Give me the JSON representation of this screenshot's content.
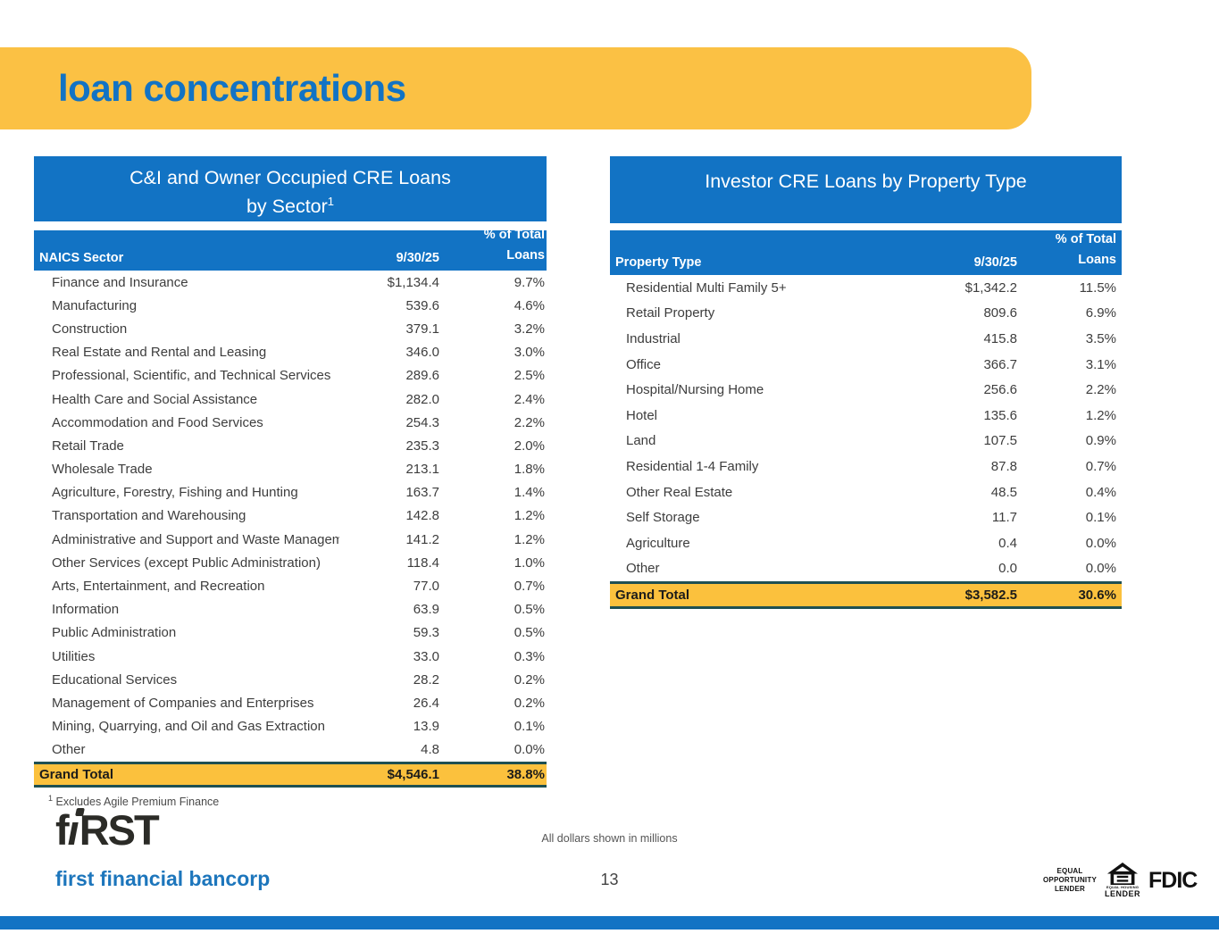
{
  "slide": {
    "title": "loan concentrations",
    "page_number": "13",
    "dollars_note": "All dollars shown in millions",
    "footnote_marker": "1",
    "footnote_text": "Excludes Agile Premium Finance"
  },
  "colors": {
    "brand_blue": "#1273C4",
    "banner_yellow": "#FBC144",
    "total_row_yellow": "#FBC13D",
    "total_row_border_teal": "#1E5052"
  },
  "left_table": {
    "title_line1": "C&I and Owner Occupied CRE Loans",
    "title_line2": "by Sector",
    "title_superscript": "1",
    "col_name": "NAICS Sector",
    "col_value": "9/30/25",
    "col_pct_line1": "% of Total",
    "col_pct_line2": "Loans",
    "rows": [
      {
        "name": "Finance and Insurance",
        "value": "$1,134.4",
        "pct": "9.7%"
      },
      {
        "name": "Manufacturing",
        "value": "539.6",
        "pct": "4.6%"
      },
      {
        "name": "Construction",
        "value": "379.1",
        "pct": "3.2%"
      },
      {
        "name": "Real Estate and Rental and Leasing",
        "value": "346.0",
        "pct": "3.0%"
      },
      {
        "name": "Professional, Scientific, and Technical Services",
        "value": "289.6",
        "pct": "2.5%"
      },
      {
        "name": "Health Care and Social Assistance",
        "value": "282.0",
        "pct": "2.4%"
      },
      {
        "name": "Accommodation and Food Services",
        "value": "254.3",
        "pct": "2.2%"
      },
      {
        "name": "Retail Trade",
        "value": "235.3",
        "pct": "2.0%"
      },
      {
        "name": "Wholesale Trade",
        "value": "213.1",
        "pct": "1.8%"
      },
      {
        "name": "Agriculture, Forestry, Fishing and Hunting",
        "value": "163.7",
        "pct": "1.4%"
      },
      {
        "name": "Transportation and Warehousing",
        "value": "142.8",
        "pct": "1.2%"
      },
      {
        "name": "Administrative and Support and Waste Managemen",
        "value": "141.2",
        "pct": "1.2%"
      },
      {
        "name": "Other Services (except Public Administration)",
        "value": "118.4",
        "pct": "1.0%"
      },
      {
        "name": "Arts, Entertainment, and Recreation",
        "value": "77.0",
        "pct": "0.7%"
      },
      {
        "name": "Information",
        "value": "63.9",
        "pct": "0.5%"
      },
      {
        "name": "Public Administration",
        "value": "59.3",
        "pct": "0.5%"
      },
      {
        "name": "Utilities",
        "value": "33.0",
        "pct": "0.3%"
      },
      {
        "name": "Educational Services",
        "value": "28.2",
        "pct": "0.2%"
      },
      {
        "name": "Management of Companies and Enterprises",
        "value": "26.4",
        "pct": "0.2%"
      },
      {
        "name": "Mining, Quarrying, and Oil and Gas Extraction",
        "value": "13.9",
        "pct": "0.1%"
      },
      {
        "name": "Other",
        "value": "4.8",
        "pct": "0.0%"
      }
    ],
    "total": {
      "name": "Grand Total",
      "value": "$4,546.1",
      "pct": "38.8%"
    }
  },
  "right_table": {
    "title_line1": "Investor CRE Loans by Property Type",
    "col_name": "Property Type",
    "col_value": "9/30/25",
    "col_pct_line1": "% of Total",
    "col_pct_line2": "Loans",
    "rows": [
      {
        "name": "Residential Multi Family 5+",
        "value": "$1,342.2",
        "pct": "11.5%"
      },
      {
        "name": "Retail Property",
        "value": "809.6",
        "pct": "6.9%"
      },
      {
        "name": "Industrial",
        "value": "415.8",
        "pct": "3.5%"
      },
      {
        "name": "Office",
        "value": "366.7",
        "pct": "3.1%"
      },
      {
        "name": "Hospital/Nursing Home",
        "value": "256.6",
        "pct": "2.2%"
      },
      {
        "name": "Hotel",
        "value": "135.6",
        "pct": "1.2%"
      },
      {
        "name": "Land",
        "value": "107.5",
        "pct": "0.9%"
      },
      {
        "name": "Residential 1-4 Family",
        "value": "87.8",
        "pct": "0.7%"
      },
      {
        "name": "Other Real Estate",
        "value": "48.5",
        "pct": "0.4%"
      },
      {
        "name": "Self Storage",
        "value": "11.7",
        "pct": "0.1%"
      },
      {
        "name": "Agriculture",
        "value": "0.4",
        "pct": "0.0%"
      },
      {
        "name": "Other",
        "value": "0.0",
        "pct": "0.0%"
      }
    ],
    "total": {
      "name": "Grand Total",
      "value": "$3,582.5",
      "pct": "30.6%"
    }
  },
  "footer": {
    "logo_part1": "f",
    "logo_part2": "ı",
    "logo_part3": "RST",
    "logo_subtext": "first financial bancorp",
    "eol_line1": "EQUAL",
    "eol_line2": "OPPORTUNITY",
    "eol_line3": "LENDER",
    "ehl_tiny": "EQUAL HOUSING",
    "ehl_label": "LENDER",
    "fdic_label": "FDIC"
  }
}
